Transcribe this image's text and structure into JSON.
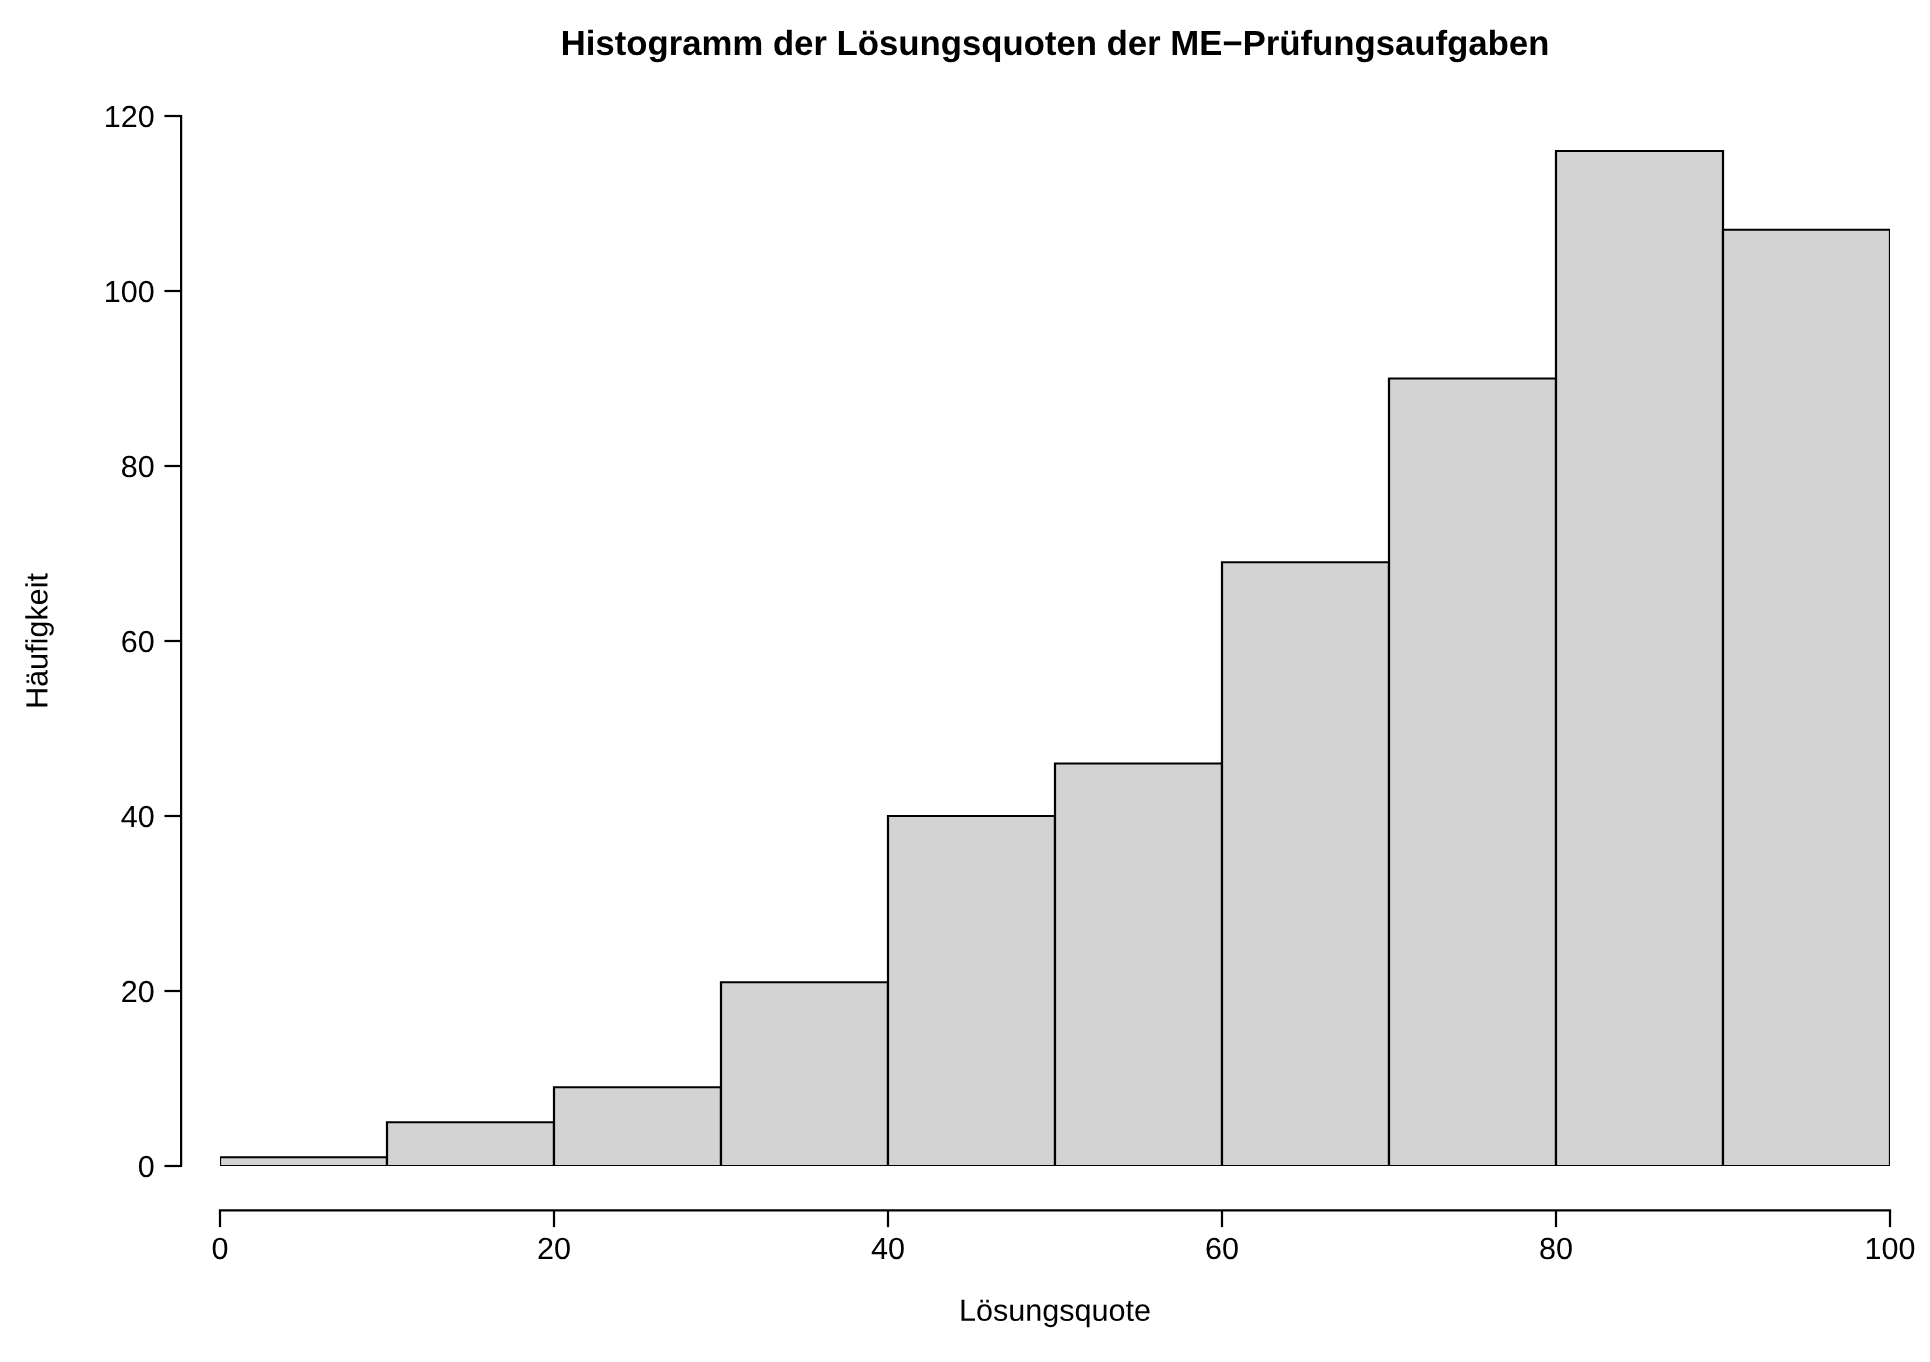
{
  "chart_data": {
    "type": "histogram",
    "title": "Histogramm der Lösungsquoten der ME−Prüfungsaufgaben",
    "xlabel": "Lösungsquote",
    "ylabel": "Häufigkeit",
    "bins": [
      0,
      10,
      20,
      30,
      40,
      50,
      60,
      70,
      80,
      90,
      100
    ],
    "values": [
      1,
      5,
      9,
      21,
      40,
      46,
      69,
      90,
      116,
      107
    ],
    "color": "#d3d3d3",
    "xlim": [
      0,
      100
    ],
    "ylim": [
      0,
      120
    ],
    "xticks": [
      0,
      20,
      40,
      60,
      80,
      100
    ],
    "yticks": [
      0,
      20,
      40,
      60,
      80,
      100,
      120
    ],
    "grid": false,
    "legend": false
  }
}
